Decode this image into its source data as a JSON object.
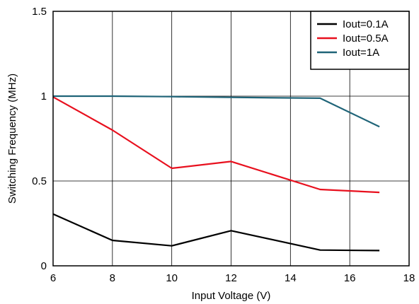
{
  "chart_data": {
    "type": "line",
    "xlabel": "Input Voltage (V)",
    "ylabel": "Switching Frequency (MHz)",
    "xlim": [
      6,
      18
    ],
    "ylim": [
      0,
      1.5
    ],
    "x_ticks": [
      6,
      8,
      10,
      12,
      14,
      16,
      18
    ],
    "y_ticks": [
      0,
      0.5,
      1,
      1.5
    ],
    "x_tick_labels": [
      "6",
      "8",
      "10",
      "12",
      "14",
      "16",
      "18"
    ],
    "y_tick_labels": [
      "0",
      "0.5",
      "1",
      "1.5"
    ],
    "grid": true,
    "legend_position": "top-right",
    "series": [
      {
        "name": "Iout=0.1A",
        "color": "#000000",
        "points": [
          [
            6,
            0.305
          ],
          [
            8,
            0.15
          ],
          [
            10,
            0.118
          ],
          [
            12,
            0.207
          ],
          [
            15,
            0.093
          ],
          [
            17,
            0.09
          ]
        ]
      },
      {
        "name": "Iout=0.5A",
        "color": "#e8101e",
        "points": [
          [
            6,
            0.995
          ],
          [
            8,
            0.8
          ],
          [
            10,
            0.575
          ],
          [
            12,
            0.615
          ],
          [
            15,
            0.45
          ],
          [
            17,
            0.433
          ]
        ]
      },
      {
        "name": "Iout=1A",
        "color": "#1f6478",
        "points": [
          [
            6,
            1.0
          ],
          [
            8,
            1.0
          ],
          [
            10,
            0.997
          ],
          [
            12,
            0.993
          ],
          [
            15,
            0.988
          ],
          [
            17,
            0.82
          ]
        ]
      }
    ]
  }
}
